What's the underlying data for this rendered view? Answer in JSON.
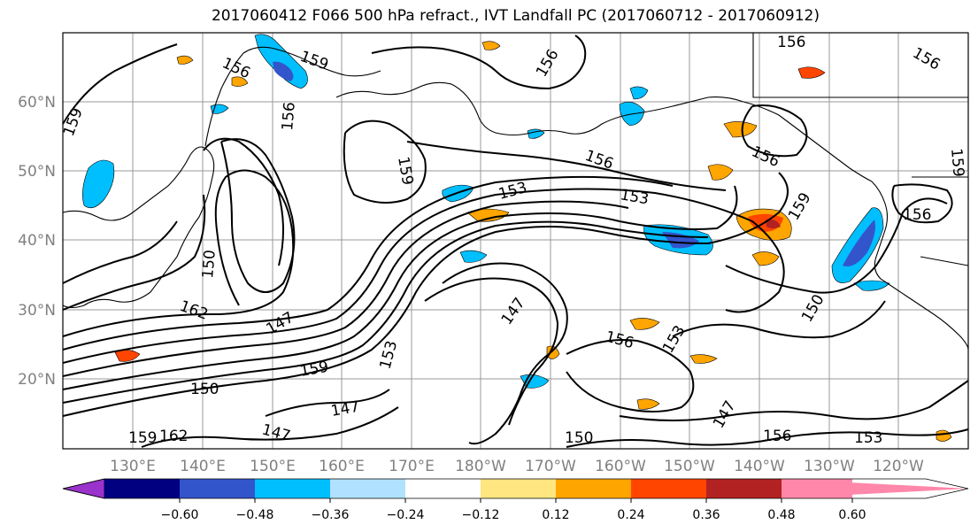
{
  "title": "2017060412 F066 500 hPa refract., IVT Landfall PC (2017060712 - 2017060912)",
  "lon_ticks": [
    "130°E",
    "140°E",
    "150°E",
    "160°E",
    "170°E",
    "180°W",
    "170°W",
    "160°W",
    "150°W",
    "140°W",
    "130°W",
    "120°W"
  ],
  "lat_ticks": [
    "60°N",
    "50°N",
    "40°N",
    "30°N",
    "20°N"
  ],
  "colorbar": {
    "labels": [
      "−0.60",
      "−0.48",
      "−0.36",
      "−0.24",
      "−0.12",
      "0.12",
      "0.24",
      "0.36",
      "0.48",
      "0.60"
    ],
    "colors": [
      "#9933cc",
      "#000080",
      "#3355cc",
      "#00bfff",
      "#b0e2ff",
      "#ffffff",
      "#ffe680",
      "#ffa500",
      "#ff4500",
      "#b22222",
      "#ff88aa"
    ]
  },
  "contour_labels": [
    "156",
    "159",
    "156",
    "156",
    "159",
    "153",
    "150",
    "147",
    "162",
    "159",
    "153",
    "147",
    "150",
    "147",
    "156",
    "153",
    "147",
    "156",
    "150",
    "156",
    "153",
    "147",
    "159",
    "162",
    "156",
    "159",
    "156",
    "150",
    "153",
    "156",
    "159",
    "159",
    "156"
  ]
}
